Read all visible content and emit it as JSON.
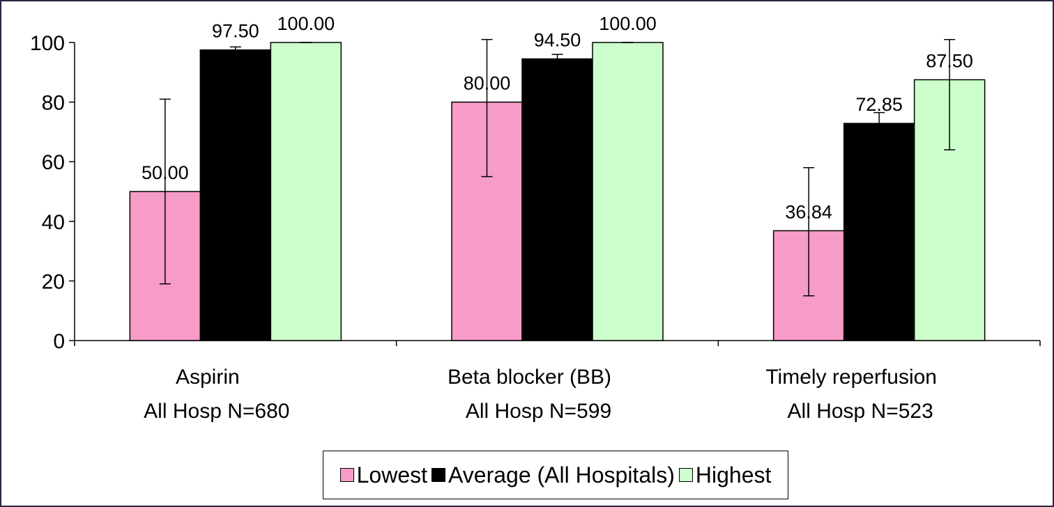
{
  "chart_data": {
    "type": "bar",
    "categories": [
      [
        "Aspirin",
        "All Hosp N=680"
      ],
      [
        "Beta blocker (BB)",
        "All Hosp N=599"
      ],
      [
        "Timely reperfusion",
        "All Hosp N=523"
      ]
    ],
    "series": [
      {
        "name": "Lowest",
        "color": "#f79cc9",
        "values": [
          50.0,
          80.0,
          36.84
        ],
        "error": [
          [
            19,
            81
          ],
          [
            55,
            101
          ],
          [
            15,
            58
          ]
        ]
      },
      {
        "name": "Average (All Hospitals)",
        "color": "#000000",
        "values": [
          97.5,
          94.5,
          72.85
        ],
        "error": [
          [
            96.5,
            98.5
          ],
          [
            93.5,
            96
          ],
          [
            69,
            76.5
          ]
        ]
      },
      {
        "name": "Highest",
        "color": "#ccffcc",
        "values": [
          100.0,
          100.0,
          87.5
        ],
        "error": [
          [
            100,
            100
          ],
          [
            100,
            100
          ],
          [
            64,
            101
          ]
        ]
      }
    ],
    "data_labels": [
      [
        "50.00",
        "80.00",
        "36.84"
      ],
      [
        "97.50",
        "94.50",
        "72.85"
      ],
      [
        "100.00",
        "100.00",
        "87.50"
      ]
    ],
    "yticks": [
      "0",
      "20",
      "40",
      "60",
      "80",
      "100"
    ],
    "ylim": [
      0,
      100
    ],
    "grid": false,
    "legend_position": "bottom",
    "title": "",
    "xlabel": "",
    "ylabel": ""
  },
  "legend": {
    "items": [
      "Lowest",
      "Average (All Hospitals)",
      "Highest"
    ]
  }
}
